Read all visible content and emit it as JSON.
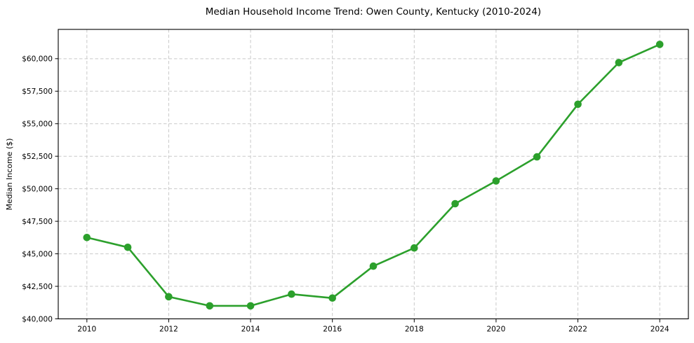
{
  "chart_data": {
    "type": "line",
    "title": "Median Household Income Trend: Owen County, Kentucky (2010-2024)",
    "xlabel": "",
    "ylabel": "Median Income ($)",
    "x": [
      2010,
      2011,
      2012,
      2013,
      2014,
      2015,
      2016,
      2017,
      2018,
      2019,
      2020,
      2021,
      2022,
      2023,
      2024
    ],
    "values": [
      46250,
      45500,
      41700,
      41000,
      41000,
      41900,
      41600,
      44050,
      45450,
      48850,
      50600,
      52450,
      56500,
      59700,
      61100
    ],
    "xlim": [
      2009.3,
      2024.7
    ],
    "ylim": [
      40000,
      62250
    ],
    "xticks": [
      2010,
      2012,
      2014,
      2016,
      2018,
      2020,
      2022,
      2024
    ],
    "xtick_labels": [
      "2010",
      "2012",
      "2014",
      "2016",
      "2018",
      "2020",
      "2022",
      "2024"
    ],
    "yticks": [
      40000,
      42500,
      45000,
      47500,
      50000,
      52500,
      55000,
      57500,
      60000
    ],
    "ytick_labels": [
      "$40,000",
      "$42,500",
      "$45,000",
      "$47,500",
      "$50,000",
      "$52,500",
      "$55,000",
      "$57,500",
      "$60,000"
    ],
    "grid": "dashed-both-axes",
    "legend": "none",
    "marker": "circle",
    "line_color": "#2ca02c",
    "grid_color": "#c9c9c9",
    "axis_color": "#000000",
    "text_color": "#000000",
    "background_color": "#ffffff"
  }
}
